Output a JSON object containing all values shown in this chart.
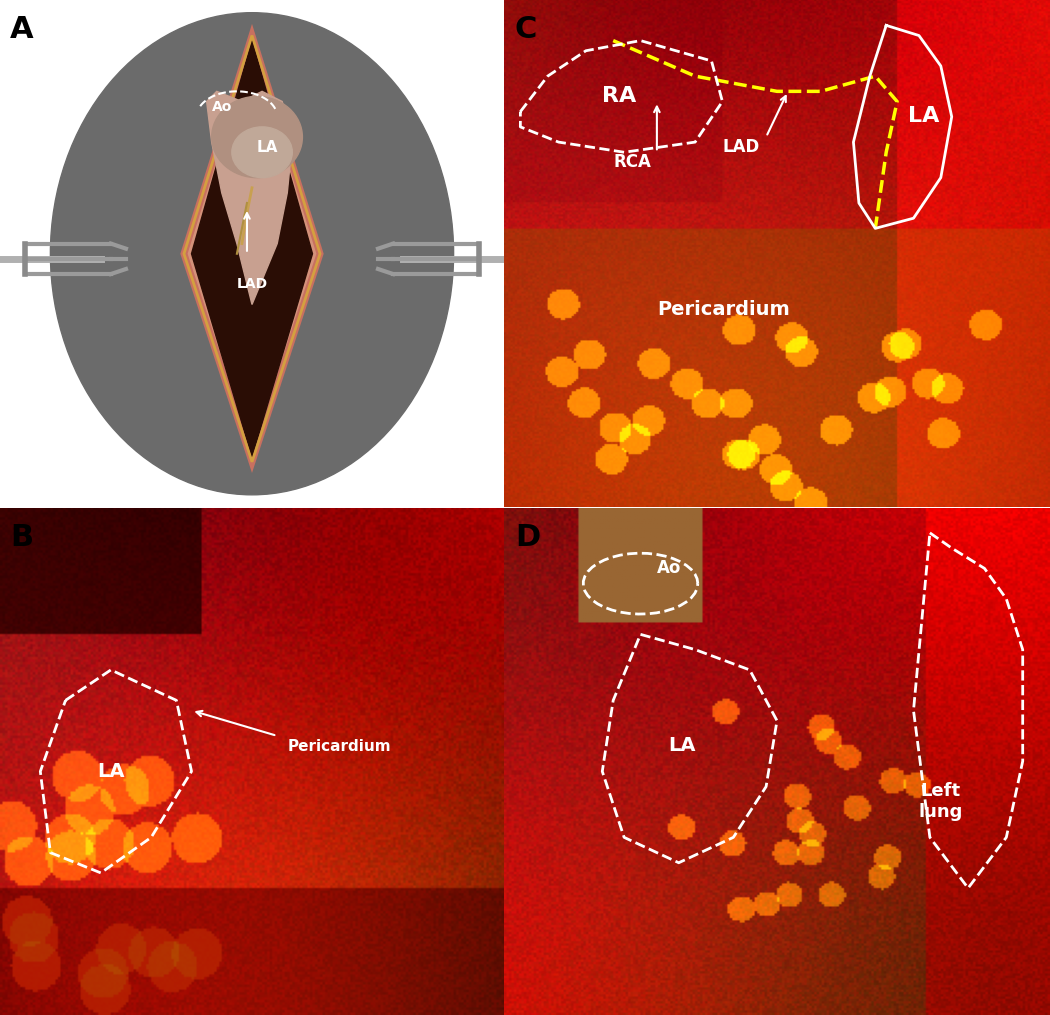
{
  "panel_labels": [
    "A",
    "B",
    "C",
    "D"
  ],
  "panel_label_fontsize": 22,
  "panel_label_color": "#000000",
  "panel_label_bold": true,
  "bg_color": "#ffffff",
  "label_A_texts": [
    "Ao",
    "LA",
    "LAD"
  ],
  "label_C_texts": [
    "RA",
    "LA",
    "RCA",
    "LAD",
    "Pericardium"
  ],
  "label_B_texts": [
    "LA",
    "Pericardium"
  ],
  "label_D_texts": [
    "Ao",
    "LA",
    "Left\nlung"
  ],
  "illustration_bg": "#6b6b6b",
  "tissue_pink": "#d4a0a0",
  "tissue_dark": "#5c2020",
  "suture_color": "#e8c880",
  "heart_color": "#c49090",
  "retractor_color": "#9a9a9a"
}
